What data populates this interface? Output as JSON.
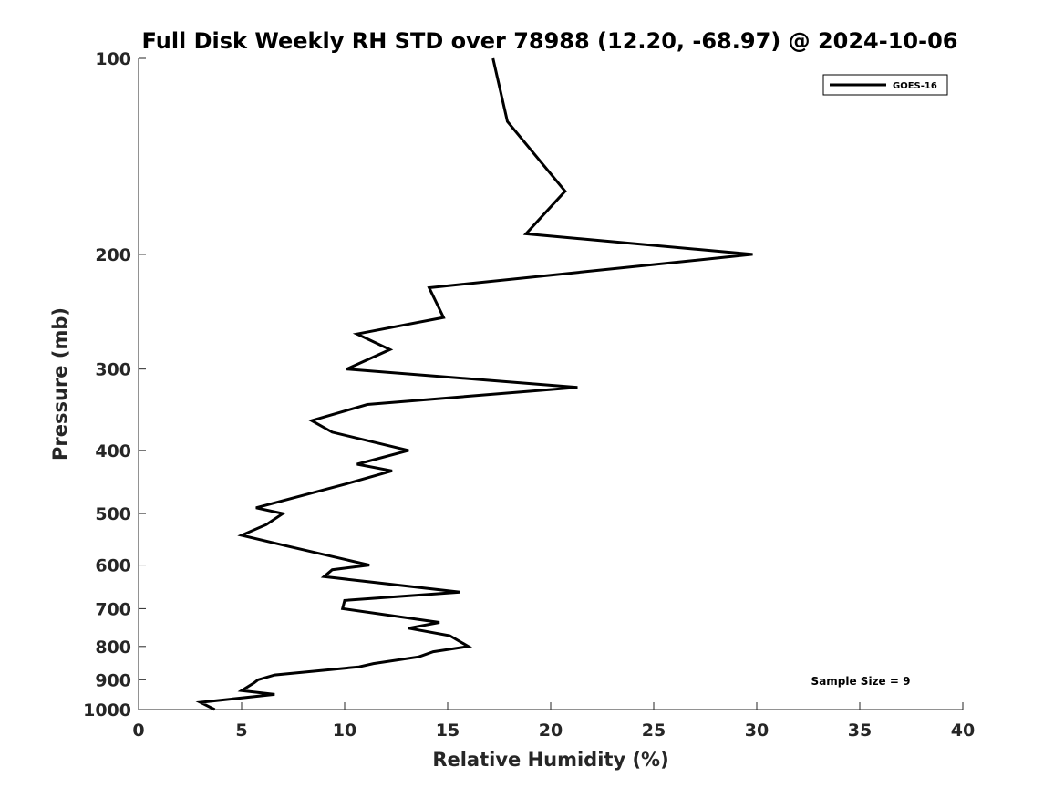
{
  "chart_data": {
    "type": "line",
    "title": "Full Disk Weekly RH STD over 78988 (12.20, -68.97) @ 2024-10-06",
    "xlabel": "Relative Humidity (%)",
    "ylabel": "Pressure (mb)",
    "xlim": [
      0,
      40
    ],
    "ylim": [
      100,
      1000
    ],
    "y_scale": "log",
    "y_reversed": true,
    "x_ticks": [
      0,
      5,
      10,
      15,
      20,
      25,
      30,
      35,
      40
    ],
    "y_ticks": [
      100,
      200,
      300,
      400,
      500,
      600,
      700,
      800,
      900,
      1000
    ],
    "grid": false,
    "legend_position": "top-right",
    "annotation": "Sample Size = 9",
    "series": [
      {
        "name": "GOES-16",
        "color": "#000000",
        "points": [
          [
            17.2,
            100
          ],
          [
            17.9,
            125
          ],
          [
            20.7,
            160
          ],
          [
            18.8,
            186
          ],
          [
            29.8,
            200
          ],
          [
            14.1,
            225
          ],
          [
            14.8,
            250
          ],
          [
            10.6,
            265
          ],
          [
            12.2,
            280
          ],
          [
            10.1,
            300
          ],
          [
            21.3,
            320
          ],
          [
            11.1,
            340
          ],
          [
            8.4,
            360
          ],
          [
            9.4,
            375
          ],
          [
            13.1,
            400
          ],
          [
            10.6,
            420
          ],
          [
            12.3,
            430
          ],
          [
            10.1,
            450
          ],
          [
            5.7,
            490
          ],
          [
            7.0,
            500
          ],
          [
            6.2,
            520
          ],
          [
            5.0,
            540
          ],
          [
            7.1,
            560
          ],
          [
            11.2,
            600
          ],
          [
            9.4,
            610
          ],
          [
            9.0,
            625
          ],
          [
            15.6,
            660
          ],
          [
            10.0,
            680
          ],
          [
            9.9,
            700
          ],
          [
            14.6,
            735
          ],
          [
            13.1,
            750
          ],
          [
            15.1,
            770
          ],
          [
            16.0,
            800
          ],
          [
            14.3,
            815
          ],
          [
            13.6,
            830
          ],
          [
            11.4,
            850
          ],
          [
            10.7,
            860
          ],
          [
            6.6,
            885
          ],
          [
            5.8,
            900
          ],
          [
            5.6,
            910
          ],
          [
            5.0,
            935
          ],
          [
            6.6,
            948
          ],
          [
            3.0,
            975
          ],
          [
            3.7,
            1000
          ]
        ]
      }
    ]
  }
}
